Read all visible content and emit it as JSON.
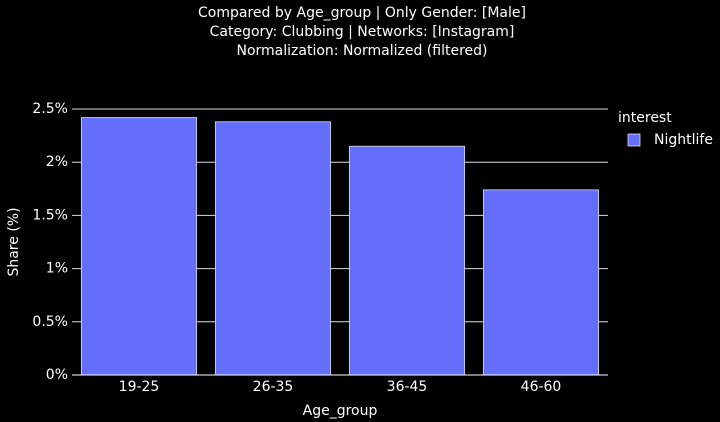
{
  "chart_data": {
    "type": "bar",
    "title": [
      "Compared by Age_group | Only Gender: [Male]",
      "Category: Clubbing | Networks: [Instagram]",
      "Normalization: Normalized (filtered)"
    ],
    "x_label": "Age_group",
    "y_label": "Share (%)",
    "categories": [
      "19-25",
      "26-35",
      "36-45",
      "46-60"
    ],
    "series": [
      {
        "name": "Nightlife",
        "color": "#636efa",
        "values": [
          2.42,
          2.38,
          2.15,
          1.74
        ]
      }
    ],
    "legend_title": "interest",
    "legend": "right",
    "grid": true,
    "ylim": [
      0,
      2.5
    ],
    "yticks": [
      {
        "value": 0,
        "label": "0%"
      },
      {
        "value": 0.5,
        "label": "0.5%"
      },
      {
        "value": 1,
        "label": "1%"
      },
      {
        "value": 1.5,
        "label": "1.5%"
      },
      {
        "value": 2,
        "label": "2%"
      },
      {
        "value": 2.5,
        "label": "2.5%"
      }
    ]
  }
}
